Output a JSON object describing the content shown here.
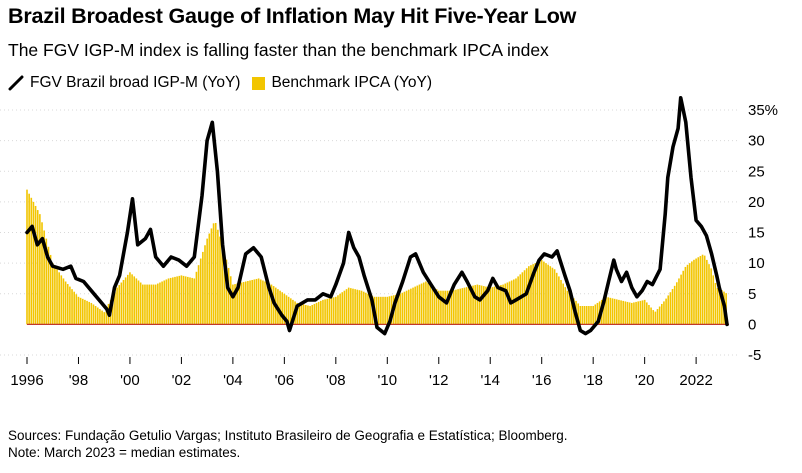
{
  "title": "Brazil Broadest Gauge of Inflation May Hit Five-Year Low",
  "subtitle": "The FGV IGP-M index is falling faster than the benchmark IPCA index",
  "legend": {
    "line_label": "FGV Brazil broad IGP-M (YoY)",
    "bar_label": "Benchmark IPCA (YoY)"
  },
  "colors": {
    "line": "#000000",
    "bars": "#f2c500",
    "zero_line": "#c0392b",
    "grid": "#d9d9d9"
  },
  "footer": {
    "sources": "Sources: Fundação Getulio Vargas; Instituto Brasileiro de Geografia e Estatística; Bloomberg.",
    "note": "Note: March 2023 = median estimates."
  },
  "chart_data": {
    "type": "line",
    "xlim": [
      1996,
      2023.2
    ],
    "ylim": [
      -5,
      35
    ],
    "y_ticks": [
      -5,
      0,
      5,
      10,
      15,
      20,
      25,
      30,
      35
    ],
    "y_tick_labels": [
      "-5",
      "0",
      "5",
      "10",
      "15",
      "20",
      "25",
      "30",
      "35%"
    ],
    "x_ticks": [
      1996,
      1998,
      2000,
      2002,
      2004,
      2006,
      2008,
      2010,
      2012,
      2014,
      2016,
      2018,
      2020,
      2022
    ],
    "x_tick_labels": [
      "1996",
      "'98",
      "'00",
      "'02",
      "'04",
      "'06",
      "'08",
      "'10",
      "'12",
      "'14",
      "'16",
      "'18",
      "'20",
      "2022"
    ],
    "grid": true,
    "legend_position": "top-left",
    "series": [
      {
        "name": "FGV Brazil broad IGP-M (YoY)",
        "type": "line",
        "points": [
          [
            1996.0,
            15.0
          ],
          [
            1996.2,
            16.0
          ],
          [
            1996.4,
            13.0
          ],
          [
            1996.6,
            14.0
          ],
          [
            1996.8,
            11.0
          ],
          [
            1997.0,
            9.5
          ],
          [
            1997.4,
            9.0
          ],
          [
            1997.7,
            9.5
          ],
          [
            1997.9,
            7.5
          ],
          [
            1998.2,
            7.0
          ],
          [
            1998.5,
            5.5
          ],
          [
            1998.8,
            4.0
          ],
          [
            1999.1,
            2.5
          ],
          [
            1999.2,
            1.5
          ],
          [
            1999.4,
            6.0
          ],
          [
            1999.6,
            8.0
          ],
          [
            1999.9,
            15.0
          ],
          [
            2000.1,
            20.5
          ],
          [
            2000.3,
            13.0
          ],
          [
            2000.6,
            14.0
          ],
          [
            2000.8,
            15.5
          ],
          [
            2001.0,
            11.0
          ],
          [
            2001.3,
            9.5
          ],
          [
            2001.6,
            11.0
          ],
          [
            2001.9,
            10.5
          ],
          [
            2002.2,
            9.5
          ],
          [
            2002.5,
            11.0
          ],
          [
            2002.8,
            21.0
          ],
          [
            2003.0,
            30.0
          ],
          [
            2003.2,
            33.0
          ],
          [
            2003.4,
            25.0
          ],
          [
            2003.6,
            13.0
          ],
          [
            2003.8,
            6.0
          ],
          [
            2004.0,
            4.5
          ],
          [
            2004.2,
            6.0
          ],
          [
            2004.5,
            11.5
          ],
          [
            2004.8,
            12.5
          ],
          [
            2005.1,
            11.0
          ],
          [
            2005.4,
            6.0
          ],
          [
            2005.6,
            3.5
          ],
          [
            2005.9,
            1.5
          ],
          [
            2006.1,
            0.5
          ],
          [
            2006.2,
            -1.0
          ],
          [
            2006.5,
            3.0
          ],
          [
            2006.9,
            4.0
          ],
          [
            2007.2,
            4.0
          ],
          [
            2007.5,
            5.0
          ],
          [
            2007.8,
            4.5
          ],
          [
            2008.0,
            6.5
          ],
          [
            2008.3,
            10.0
          ],
          [
            2008.5,
            15.0
          ],
          [
            2008.7,
            12.5
          ],
          [
            2008.9,
            11.0
          ],
          [
            2009.1,
            8.0
          ],
          [
            2009.4,
            4.0
          ],
          [
            2009.6,
            -0.5
          ],
          [
            2009.9,
            -1.5
          ],
          [
            2010.1,
            0.5
          ],
          [
            2010.3,
            3.5
          ],
          [
            2010.6,
            7.0
          ],
          [
            2010.9,
            11.0
          ],
          [
            2011.1,
            11.5
          ],
          [
            2011.4,
            8.5
          ],
          [
            2011.7,
            6.5
          ],
          [
            2012.0,
            4.5
          ],
          [
            2012.3,
            3.5
          ],
          [
            2012.6,
            6.5
          ],
          [
            2012.9,
            8.5
          ],
          [
            2013.1,
            7.0
          ],
          [
            2013.4,
            4.5
          ],
          [
            2013.6,
            4.0
          ],
          [
            2013.9,
            5.5
          ],
          [
            2014.1,
            7.5
          ],
          [
            2014.3,
            6.0
          ],
          [
            2014.6,
            5.5
          ],
          [
            2014.8,
            3.5
          ],
          [
            2015.0,
            4.0
          ],
          [
            2015.4,
            5.0
          ],
          [
            2015.7,
            8.5
          ],
          [
            2015.9,
            10.5
          ],
          [
            2016.1,
            11.5
          ],
          [
            2016.4,
            11.0
          ],
          [
            2016.6,
            12.0
          ],
          [
            2016.9,
            8.0
          ],
          [
            2017.1,
            5.5
          ],
          [
            2017.3,
            2.0
          ],
          [
            2017.5,
            -1.0
          ],
          [
            2017.7,
            -1.5
          ],
          [
            2017.9,
            -1.0
          ],
          [
            2018.2,
            0.5
          ],
          [
            2018.4,
            3.5
          ],
          [
            2018.6,
            7.0
          ],
          [
            2018.8,
            10.5
          ],
          [
            2018.9,
            9.0
          ],
          [
            2019.1,
            7.0
          ],
          [
            2019.3,
            8.5
          ],
          [
            2019.5,
            6.0
          ],
          [
            2019.7,
            4.5
          ],
          [
            2019.9,
            5.5
          ],
          [
            2020.1,
            7.0
          ],
          [
            2020.3,
            6.5
          ],
          [
            2020.6,
            9.0
          ],
          [
            2020.8,
            18.0
          ],
          [
            2020.9,
            24.0
          ],
          [
            2021.1,
            29.0
          ],
          [
            2021.3,
            32.0
          ],
          [
            2021.4,
            37.0
          ],
          [
            2021.6,
            33.0
          ],
          [
            2021.8,
            24.0
          ],
          [
            2022.0,
            17.0
          ],
          [
            2022.2,
            16.0
          ],
          [
            2022.4,
            14.5
          ],
          [
            2022.6,
            11.5
          ],
          [
            2022.8,
            8.0
          ],
          [
            2022.9,
            6.0
          ],
          [
            2023.1,
            3.0
          ],
          [
            2023.2,
            0.0
          ]
        ]
      },
      {
        "name": "Benchmark IPCA (YoY)",
        "type": "bar",
        "points": [
          [
            1996.0,
            22.0
          ],
          [
            1996.5,
            18.0
          ],
          [
            1997.0,
            10.0
          ],
          [
            1997.5,
            7.0
          ],
          [
            1998.0,
            4.5
          ],
          [
            1998.5,
            3.5
          ],
          [
            1999.0,
            2.0
          ],
          [
            1999.5,
            6.0
          ],
          [
            2000.0,
            8.5
          ],
          [
            2000.5,
            6.5
          ],
          [
            2001.0,
            6.5
          ],
          [
            2001.5,
            7.5
          ],
          [
            2002.0,
            8.0
          ],
          [
            2002.5,
            7.5
          ],
          [
            2003.0,
            14.0
          ],
          [
            2003.3,
            17.0
          ],
          [
            2003.6,
            13.0
          ],
          [
            2004.0,
            6.5
          ],
          [
            2004.5,
            7.0
          ],
          [
            2005.0,
            7.5
          ],
          [
            2005.5,
            6.5
          ],
          [
            2006.0,
            5.0
          ],
          [
            2006.5,
            3.5
          ],
          [
            2007.0,
            3.0
          ],
          [
            2007.5,
            4.0
          ],
          [
            2008.0,
            4.5
          ],
          [
            2008.5,
            6.0
          ],
          [
            2009.0,
            5.5
          ],
          [
            2009.5,
            4.5
          ],
          [
            2010.0,
            4.5
          ],
          [
            2010.5,
            5.0
          ],
          [
            2011.0,
            6.0
          ],
          [
            2011.5,
            7.0
          ],
          [
            2012.0,
            5.5
          ],
          [
            2012.5,
            5.5
          ],
          [
            2013.0,
            6.0
          ],
          [
            2013.5,
            6.5
          ],
          [
            2014.0,
            6.0
          ],
          [
            2014.5,
            6.5
          ],
          [
            2015.0,
            7.5
          ],
          [
            2015.5,
            9.5
          ],
          [
            2016.0,
            10.5
          ],
          [
            2016.5,
            9.0
          ],
          [
            2017.0,
            5.5
          ],
          [
            2017.5,
            3.0
          ],
          [
            2018.0,
            3.0
          ],
          [
            2018.5,
            4.5
          ],
          [
            2019.0,
            4.0
          ],
          [
            2019.5,
            3.5
          ],
          [
            2020.0,
            4.0
          ],
          [
            2020.4,
            2.0
          ],
          [
            2020.8,
            4.0
          ],
          [
            2021.2,
            6.5
          ],
          [
            2021.6,
            9.5
          ],
          [
            2021.9,
            10.5
          ],
          [
            2022.3,
            11.5
          ],
          [
            2022.6,
            9.0
          ],
          [
            2022.8,
            6.0
          ],
          [
            2023.0,
            5.6
          ],
          [
            2023.2,
            5.0
          ]
        ]
      }
    ]
  }
}
